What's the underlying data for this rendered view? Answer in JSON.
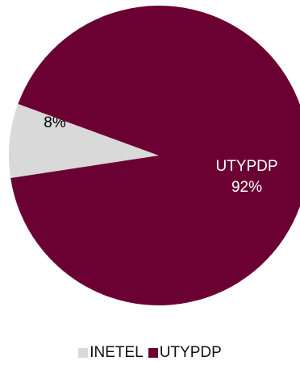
{
  "chart_data": {
    "type": "pie",
    "title": "",
    "slices": [
      {
        "label": "INETEL",
        "value": 8,
        "value_label": "8%",
        "color": "#d9d9d9",
        "text_color": "#000000"
      },
      {
        "label": "UTYPDP",
        "value": 92,
        "value_label": "92%",
        "color": "#6b0033",
        "text_color": "#ffffff"
      }
    ],
    "legend": {
      "placement": "bottom",
      "items": [
        "INETEL",
        "UTYPDP"
      ]
    }
  }
}
